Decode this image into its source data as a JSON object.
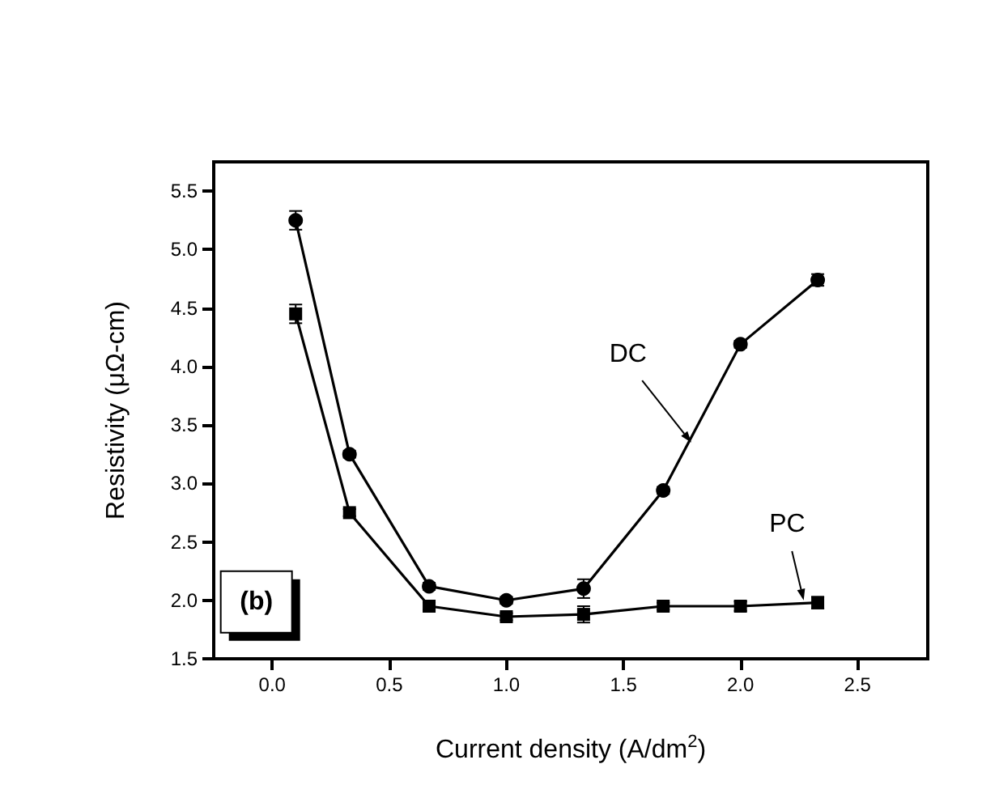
{
  "chart_data": {
    "type": "line",
    "xlabel": "Current density (A/dm$^{2}$)",
    "ylabel": "Resistivity (μΩ-cm)",
    "x": [
      0.1,
      0.33,
      0.67,
      1.0,
      1.33,
      1.67,
      2.0,
      2.33
    ],
    "series": [
      {
        "name": "DC",
        "color": "#000000",
        "marker": "circle",
        "values": [
          5.25,
          3.25,
          2.12,
          2.0,
          2.1,
          2.94,
          4.19,
          4.74
        ],
        "errors": [
          0.08,
          0.03,
          0.03,
          0.03,
          0.08,
          0.03,
          0.03,
          0.05
        ]
      },
      {
        "name": "PC",
        "color": "#000000",
        "marker": "square",
        "values": [
          4.45,
          2.75,
          1.95,
          1.86,
          1.88,
          1.95,
          1.95,
          1.98
        ],
        "errors": [
          0.08,
          0.03,
          0.03,
          0.03,
          0.07,
          0.03,
          0.04,
          0.05
        ]
      }
    ],
    "annotations": [
      "(b)"
    ],
    "xlim": [
      -0.25,
      2.8
    ],
    "xticks": [
      {
        "value": 0,
        "label": "0.0"
      },
      0.5,
      {
        "value": 1,
        "label": "1.0"
      },
      1.5,
      {
        "value": 2,
        "label": "2.0"
      },
      2.5
    ],
    "ylim": [
      1.5,
      5.75
    ],
    "yticks": [
      1.5,
      {
        "value": 2,
        "label": "2.0"
      },
      2.5,
      {
        "value": 3,
        "label": "3.0"
      },
      3.5,
      {
        "value": 4,
        "label": "4.0"
      },
      4.5,
      {
        "value": 5,
        "label": "5.0"
      },
      5.5
    ],
    "grid": false,
    "legend": false,
    "line_style": "solid"
  }
}
